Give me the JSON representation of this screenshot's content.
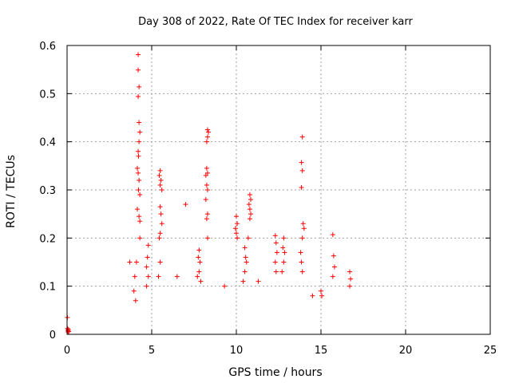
{
  "chart_data": {
    "type": "scatter",
    "title": "Day 308 of 2022, Rate Of TEC Index for receiver karr",
    "xlabel": "GPS time / hours",
    "ylabel": "ROTI / TECUs",
    "xlim": [
      0,
      25
    ],
    "ylim": [
      0,
      0.6
    ],
    "x_ticks": [
      "0",
      "5",
      "10",
      "15",
      "20",
      "25"
    ],
    "y_ticks": [
      "0",
      "0.1",
      "0.2",
      "0.3",
      "0.4",
      "0.5",
      "0.6"
    ],
    "grid": true,
    "marker": "plus",
    "series": [
      {
        "color": "#ff0000",
        "points": [
          [
            0.02,
            0.035
          ],
          [
            0.03,
            0.012
          ],
          [
            0.05,
            0.008
          ],
          [
            0.06,
            0.005
          ],
          [
            0.08,
            0.01
          ],
          [
            0.1,
            0.006
          ],
          [
            4.2,
            0.581
          ],
          [
            4.2,
            0.549
          ],
          [
            4.25,
            0.514
          ],
          [
            4.2,
            0.494
          ],
          [
            4.25,
            0.44
          ],
          [
            4.3,
            0.42
          ],
          [
            4.25,
            0.4
          ],
          [
            4.2,
            0.38
          ],
          [
            4.22,
            0.37
          ],
          [
            4.15,
            0.345
          ],
          [
            4.2,
            0.335
          ],
          [
            4.25,
            0.32
          ],
          [
            4.22,
            0.3
          ],
          [
            4.3,
            0.29
          ],
          [
            4.15,
            0.26
          ],
          [
            4.25,
            0.245
          ],
          [
            4.3,
            0.235
          ],
          [
            4.3,
            0.2
          ],
          [
            4.1,
            0.15
          ],
          [
            4.0,
            0.12
          ],
          [
            3.95,
            0.09
          ],
          [
            4.05,
            0.07
          ],
          [
            5.5,
            0.34
          ],
          [
            5.45,
            0.33
          ],
          [
            5.55,
            0.32
          ],
          [
            5.5,
            0.31
          ],
          [
            5.6,
            0.3
          ],
          [
            5.5,
            0.265
          ],
          [
            5.55,
            0.25
          ],
          [
            5.6,
            0.23
          ],
          [
            5.5,
            0.21
          ],
          [
            5.45,
            0.2
          ],
          [
            5.5,
            0.15
          ],
          [
            5.4,
            0.12
          ],
          [
            4.8,
            0.185
          ],
          [
            4.75,
            0.16
          ],
          [
            4.7,
            0.14
          ],
          [
            4.8,
            0.12
          ],
          [
            4.7,
            0.1
          ],
          [
            7.0,
            0.27
          ],
          [
            8.3,
            0.425
          ],
          [
            8.35,
            0.42
          ],
          [
            8.3,
            0.41
          ],
          [
            8.25,
            0.4
          ],
          [
            8.25,
            0.345
          ],
          [
            8.3,
            0.335
          ],
          [
            8.2,
            0.33
          ],
          [
            8.25,
            0.31
          ],
          [
            8.3,
            0.3
          ],
          [
            8.2,
            0.28
          ],
          [
            8.3,
            0.25
          ],
          [
            8.25,
            0.24
          ],
          [
            8.3,
            0.2
          ],
          [
            7.8,
            0.175
          ],
          [
            7.75,
            0.16
          ],
          [
            7.85,
            0.15
          ],
          [
            7.8,
            0.13
          ],
          [
            7.7,
            0.12
          ],
          [
            7.9,
            0.11
          ],
          [
            10.0,
            0.245
          ],
          [
            10.05,
            0.23
          ],
          [
            9.95,
            0.22
          ],
          [
            10.0,
            0.21
          ],
          [
            10.05,
            0.2
          ],
          [
            10.8,
            0.29
          ],
          [
            10.85,
            0.28
          ],
          [
            10.75,
            0.27
          ],
          [
            10.8,
            0.26
          ],
          [
            10.85,
            0.25
          ],
          [
            10.8,
            0.24
          ],
          [
            10.7,
            0.2
          ],
          [
            10.5,
            0.18
          ],
          [
            10.55,
            0.16
          ],
          [
            10.6,
            0.15
          ],
          [
            10.5,
            0.13
          ],
          [
            10.4,
            0.11
          ],
          [
            12.3,
            0.205
          ],
          [
            12.35,
            0.19
          ],
          [
            12.4,
            0.17
          ],
          [
            12.3,
            0.15
          ],
          [
            12.35,
            0.13
          ],
          [
            12.8,
            0.2
          ],
          [
            12.75,
            0.18
          ],
          [
            12.85,
            0.17
          ],
          [
            12.8,
            0.15
          ],
          [
            12.7,
            0.13
          ],
          [
            13.9,
            0.41
          ],
          [
            13.85,
            0.357
          ],
          [
            13.9,
            0.34
          ],
          [
            13.85,
            0.305
          ],
          [
            13.95,
            0.23
          ],
          [
            14.0,
            0.22
          ],
          [
            13.9,
            0.2
          ],
          [
            13.8,
            0.17
          ],
          [
            13.85,
            0.15
          ],
          [
            13.9,
            0.13
          ],
          [
            15.7,
            0.207
          ],
          [
            15.75,
            0.163
          ],
          [
            15.8,
            0.14
          ],
          [
            15.7,
            0.12
          ],
          [
            15.0,
            0.09
          ],
          [
            15.05,
            0.08
          ],
          [
            16.7,
            0.13
          ],
          [
            16.75,
            0.115
          ],
          [
            16.7,
            0.1
          ],
          [
            3.7,
            0.15
          ],
          [
            6.5,
            0.12
          ],
          [
            9.3,
            0.1
          ],
          [
            11.3,
            0.11
          ],
          [
            14.5,
            0.08
          ]
        ]
      }
    ]
  }
}
